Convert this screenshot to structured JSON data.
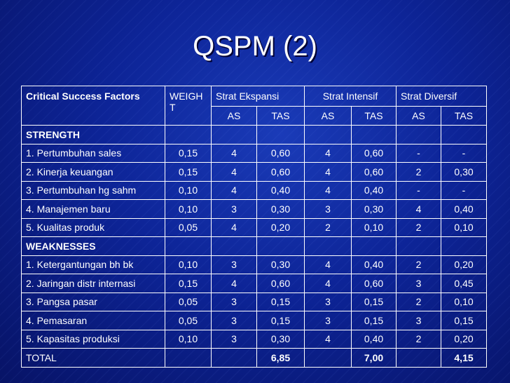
{
  "title": "QSPM (2)",
  "table": {
    "header": {
      "factor": "Critical Success Factors",
      "weight": "WEIGHT",
      "strategies": [
        "Strat Ekspansi",
        "Strat Intensif",
        "Strat Diversif"
      ],
      "sub": [
        "AS",
        "TAS",
        "AS",
        "TAS",
        "AS",
        "TAS"
      ]
    },
    "strength_label": "STRENGTH",
    "strength_rows": [
      {
        "name": "1. Pertumbuhan sales",
        "w": "0,15",
        "v": [
          "4",
          "0,60",
          "4",
          "0,60",
          "-",
          "-"
        ]
      },
      {
        "name": "2. Kinerja keuangan",
        "w": "0,15",
        "v": [
          "4",
          "0,60",
          "4",
          "0,60",
          "2",
          "0,30"
        ]
      },
      {
        "name": "3. Pertumbuhan hg sahm",
        "w": "0,10",
        "v": [
          "4",
          "0,40",
          "4",
          "0,40",
          "-",
          "-"
        ]
      },
      {
        "name": "4. Manajemen baru",
        "w": "0,10",
        "v": [
          "3",
          "0,30",
          "3",
          "0,30",
          "4",
          "0,40"
        ]
      },
      {
        "name": "5. Kualitas produk",
        "w": "0,05",
        "v": [
          "4",
          "0,20",
          "2",
          "0,10",
          "2",
          "0,10"
        ]
      }
    ],
    "weakness_label": "WEAKNESSES",
    "weakness_rows": [
      {
        "name": "1. Ketergantungan bh bk",
        "w": "0,10",
        "v": [
          "3",
          "0,30",
          "4",
          "0,40",
          "2",
          "0,20"
        ]
      },
      {
        "name": "2. Jaringan distr internasi",
        "w": "0,15",
        "v": [
          "4",
          "0,60",
          "4",
          "0,60",
          "3",
          "0,45"
        ]
      },
      {
        "name": "3. Pangsa pasar",
        "w": "0,05",
        "v": [
          "3",
          "0,15",
          "3",
          "0,15",
          "2",
          "0,10"
        ]
      },
      {
        "name": "4. Pemasaran",
        "w": "0,05",
        "v": [
          "3",
          "0,15",
          "3",
          "0,15",
          "3",
          "0,15"
        ]
      },
      {
        "name": "5. Kapasitas produksi",
        "w": "0,10",
        "v": [
          "3",
          "0,30",
          "4",
          "0,40",
          "2",
          "0,20"
        ]
      }
    ],
    "total": {
      "label": "TOTAL",
      "ekspansi": "6,85",
      "intensif": "7,00",
      "diversif": "4,15"
    }
  }
}
